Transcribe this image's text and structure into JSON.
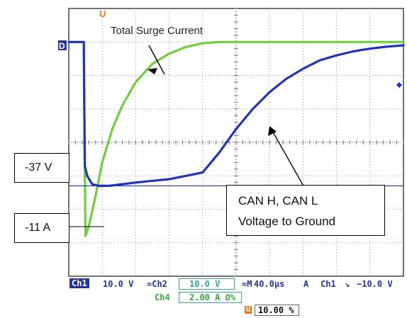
{
  "annotations": {
    "surge_label": "Total Surge Current",
    "trigger_marker": "U",
    "ground_marker": "D",
    "voltage_box": "-37 V",
    "current_box": "-11 A",
    "can_line1": "CAN H, CAN L",
    "can_line2": "Voltage to Ground"
  },
  "status_bar": {
    "ch1_tag": "Ch1",
    "ch1_scale": "10.0 V",
    "ch2_sym": "≈Ch2",
    "ch2_scale": "10.0 V",
    "m_sym": "≈M",
    "timebase": "40.0µs",
    "acq_mode": "A",
    "trig_ch": "Ch1",
    "trig_slope": "↘",
    "trig_level": "−10.0 V",
    "ch4_tag": "Ch4",
    "ch4_scale": "2.00 A Ω%",
    "pos_marker": "U",
    "trig_pos": "10.00 %"
  },
  "chart_data": {
    "type": "line",
    "xlim_divisions": [
      0,
      10
    ],
    "ylim_divisions": [
      -4,
      4
    ],
    "grid": true,
    "series": [
      {
        "color": "#6fcf3a",
        "x": [
          0.0,
          0.45,
          0.47,
          0.5,
          0.6,
          0.8,
          1.0,
          1.3,
          1.6,
          2.0,
          2.5,
          3.0,
          3.5,
          4.0,
          4.5,
          5.0,
          6.0,
          7.0,
          8.0,
          9.0,
          10.0
        ],
        "y": [
          3.0,
          3.0,
          0.0,
          -2.8,
          -2.5,
          -1.6,
          -0.6,
          0.4,
          1.1,
          1.8,
          2.35,
          2.65,
          2.85,
          2.96,
          3.0,
          3.0,
          3.0,
          3.0,
          3.0,
          3.0,
          3.0
        ]
      },
      {
        "color": "#2233bb",
        "x": [
          0.0,
          0.45,
          0.46,
          0.48,
          0.55,
          0.7,
          0.9,
          1.2,
          1.6,
          2.0,
          2.5,
          3.0,
          3.5,
          4.0,
          4.5,
          5.0,
          5.5,
          6.0,
          6.5,
          7.0,
          7.5,
          8.0,
          8.5,
          9.0,
          9.5,
          10.0
        ],
        "y": [
          3.0,
          3.0,
          1.5,
          -0.7,
          -1.0,
          -1.25,
          -1.3,
          -1.3,
          -1.25,
          -1.2,
          -1.15,
          -1.1,
          -1.0,
          -0.9,
          -0.3,
          0.4,
          1.0,
          1.5,
          1.9,
          2.2,
          2.45,
          2.6,
          2.72,
          2.8,
          2.86,
          2.9
        ]
      }
    ],
    "reference_level_div": -1.3
  }
}
